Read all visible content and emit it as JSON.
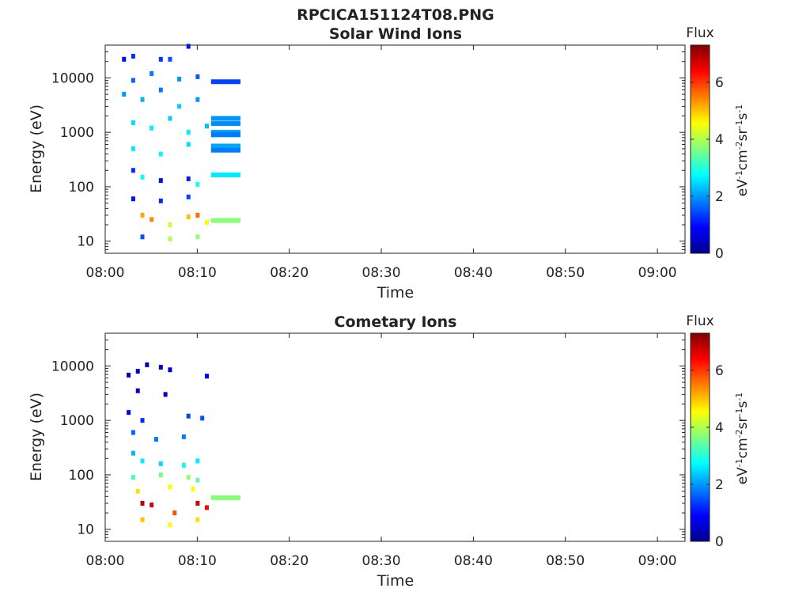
{
  "figure": {
    "title": "RPCICA151124T08.PNG"
  },
  "chart_data": [
    {
      "type": "heatmap",
      "title": "Solar Wind Ions",
      "xlabel": "Time",
      "ylabel": "Energy (eV)",
      "yscale": "log",
      "xlim": [
        "08:00",
        "09:03"
      ],
      "ylim": [
        6,
        40000
      ],
      "xticks": [
        "08:00",
        "08:10",
        "08:20",
        "08:30",
        "08:40",
        "08:50",
        "09:00"
      ],
      "yticks": [
        "10",
        "100",
        "1000",
        "10000"
      ],
      "colorbar": {
        "label": "Flux",
        "units": "eV",
        "range": [
          0,
          7.3
        ],
        "ticks": [
          "0",
          "2",
          "4",
          "6"
        ],
        "colormap": "jet"
      },
      "points": [
        {
          "t": "08:02",
          "e": 22000,
          "v": 1.0
        },
        {
          "t": "08:03",
          "e": 25000,
          "v": 1.2
        },
        {
          "t": "08:06",
          "e": 22000,
          "v": 1.3
        },
        {
          "t": "08:07",
          "e": 22000,
          "v": 1.5
        },
        {
          "t": "08:09",
          "e": 38000,
          "v": 1.0
        },
        {
          "t": "08:03",
          "e": 9000,
          "v": 1.6
        },
        {
          "t": "08:05",
          "e": 12000,
          "v": 1.8
        },
        {
          "t": "08:08",
          "e": 9500,
          "v": 2.0
        },
        {
          "t": "08:10",
          "e": 10500,
          "v": 1.6
        },
        {
          "t": "08:02",
          "e": 5000,
          "v": 2.0
        },
        {
          "t": "08:04",
          "e": 4000,
          "v": 2.2
        },
        {
          "t": "08:06",
          "e": 6000,
          "v": 1.8
        },
        {
          "t": "08:08",
          "e": 3000,
          "v": 2.4
        },
        {
          "t": "08:10",
          "e": 4000,
          "v": 2.0
        },
        {
          "t": "08:03",
          "e": 1500,
          "v": 2.5
        },
        {
          "t": "08:05",
          "e": 1200,
          "v": 2.6
        },
        {
          "t": "08:07",
          "e": 1800,
          "v": 2.4
        },
        {
          "t": "08:09",
          "e": 1000,
          "v": 2.6
        },
        {
          "t": "08:11",
          "e": 1300,
          "v": 2.3
        },
        {
          "t": "08:03",
          "e": 500,
          "v": 2.6
        },
        {
          "t": "08:06",
          "e": 400,
          "v": 2.7
        },
        {
          "t": "08:09",
          "e": 600,
          "v": 2.5
        },
        {
          "t": "08:03",
          "e": 200,
          "v": 1.2
        },
        {
          "t": "08:04",
          "e": 150,
          "v": 2.8
        },
        {
          "t": "08:06",
          "e": 130,
          "v": 1.0
        },
        {
          "t": "08:09",
          "e": 140,
          "v": 1.1
        },
        {
          "t": "08:10",
          "e": 110,
          "v": 2.9
        },
        {
          "t": "08:03",
          "e": 60,
          "v": 1.0
        },
        {
          "t": "08:06",
          "e": 55,
          "v": 1.2
        },
        {
          "t": "08:09",
          "e": 65,
          "v": 1.4
        },
        {
          "t": "08:04",
          "e": 30,
          "v": 5.2
        },
        {
          "t": "08:05",
          "e": 25,
          "v": 5.4
        },
        {
          "t": "08:07",
          "e": 20,
          "v": 4.2
        },
        {
          "t": "08:09",
          "e": 28,
          "v": 5.0
        },
        {
          "t": "08:10",
          "e": 30,
          "v": 5.6
        },
        {
          "t": "08:11",
          "e": 22,
          "v": 4.6
        },
        {
          "t": "08:04",
          "e": 12,
          "v": 1.5
        },
        {
          "t": "08:07",
          "e": 11,
          "v": 4.0
        },
        {
          "t": "08:10",
          "e": 12,
          "v": 3.8
        }
      ],
      "bands": [
        {
          "t0": "08:11.5",
          "t1": "08:14.7",
          "e": 8500,
          "v": 1.4
        },
        {
          "t0": "08:11.5",
          "t1": "08:14.7",
          "e": 1800,
          "v": 2.0
        },
        {
          "t0": "08:11.5",
          "t1": "08:14.7",
          "e": 1450,
          "v": 1.9
        },
        {
          "t0": "08:11.5",
          "t1": "08:14.7",
          "e": 1000,
          "v": 2.0
        },
        {
          "t0": "08:11.5",
          "t1": "08:14.7",
          "e": 900,
          "v": 1.8
        },
        {
          "t0": "08:11.5",
          "t1": "08:14.7",
          "e": 560,
          "v": 2.1
        },
        {
          "t0": "08:11.5",
          "t1": "08:14.7",
          "e": 470,
          "v": 1.8
        },
        {
          "t0": "08:11.5",
          "t1": "08:14.7",
          "e": 165,
          "v": 2.6
        },
        {
          "t0": "08:11.5",
          "t1": "08:14.7",
          "e": 24,
          "v": 3.7
        }
      ]
    },
    {
      "type": "heatmap",
      "title": "Cometary Ions",
      "xlabel": "Time",
      "ylabel": "Energy (eV)",
      "yscale": "log",
      "xlim": [
        "08:00",
        "09:03"
      ],
      "ylim": [
        6,
        40000
      ],
      "xticks": [
        "08:00",
        "08:10",
        "08:20",
        "08:30",
        "08:40",
        "08:50",
        "09:00"
      ],
      "yticks": [
        "10",
        "100",
        "1000",
        "10000"
      ],
      "colorbar": {
        "label": "Flux",
        "units": "eV",
        "range": [
          0,
          7.3
        ],
        "ticks": [
          "0",
          "2",
          "4",
          "6"
        ],
        "colormap": "jet"
      },
      "points": [
        {
          "t": "08:02.5",
          "e": 6800,
          "v": 0.5
        },
        {
          "t": "08:03.5",
          "e": 8000,
          "v": 0.6
        },
        {
          "t": "08:04.5",
          "e": 10500,
          "v": 0.5
        },
        {
          "t": "08:06",
          "e": 9500,
          "v": 0.6
        },
        {
          "t": "08:07",
          "e": 8500,
          "v": 0.5
        },
        {
          "t": "08:11",
          "e": 6500,
          "v": 0.8
        },
        {
          "t": "08:03.5",
          "e": 3500,
          "v": 0.6
        },
        {
          "t": "08:06.5",
          "e": 3000,
          "v": 0.5
        },
        {
          "t": "08:02.5",
          "e": 1400,
          "v": 0.9
        },
        {
          "t": "08:04",
          "e": 1000,
          "v": 1.2
        },
        {
          "t": "08:09",
          "e": 1200,
          "v": 1.4
        },
        {
          "t": "08:10.5",
          "e": 1100,
          "v": 1.5
        },
        {
          "t": "08:03",
          "e": 600,
          "v": 1.6
        },
        {
          "t": "08:05.5",
          "e": 450,
          "v": 1.8
        },
        {
          "t": "08:08.5",
          "e": 500,
          "v": 1.8
        },
        {
          "t": "08:03",
          "e": 250,
          "v": 2.2
        },
        {
          "t": "08:04",
          "e": 180,
          "v": 2.6
        },
        {
          "t": "08:06",
          "e": 160,
          "v": 2.5
        },
        {
          "t": "08:08.5",
          "e": 150,
          "v": 2.8
        },
        {
          "t": "08:10",
          "e": 180,
          "v": 2.6
        },
        {
          "t": "08:03",
          "e": 90,
          "v": 3.2
        },
        {
          "t": "08:06",
          "e": 100,
          "v": 3.6
        },
        {
          "t": "08:09",
          "e": 90,
          "v": 3.8
        },
        {
          "t": "08:10",
          "e": 80,
          "v": 3.4
        },
        {
          "t": "08:03.5",
          "e": 50,
          "v": 4.8
        },
        {
          "t": "08:07",
          "e": 60,
          "v": 4.6
        },
        {
          "t": "08:09.5",
          "e": 55,
          "v": 4.6
        },
        {
          "t": "08:04",
          "e": 30,
          "v": 6.8
        },
        {
          "t": "08:05",
          "e": 28,
          "v": 6.6
        },
        {
          "t": "08:07.5",
          "e": 20,
          "v": 5.8
        },
        {
          "t": "08:10",
          "e": 30,
          "v": 6.7
        },
        {
          "t": "08:11",
          "e": 25,
          "v": 6.4
        },
        {
          "t": "08:04",
          "e": 15,
          "v": 5.0
        },
        {
          "t": "08:07",
          "e": 12,
          "v": 4.6
        },
        {
          "t": "08:10",
          "e": 15,
          "v": 4.8
        }
      ],
      "bands": [
        {
          "t0": "08:11.5",
          "t1": "08:14.7",
          "e": 38,
          "v": 3.7
        }
      ]
    }
  ]
}
